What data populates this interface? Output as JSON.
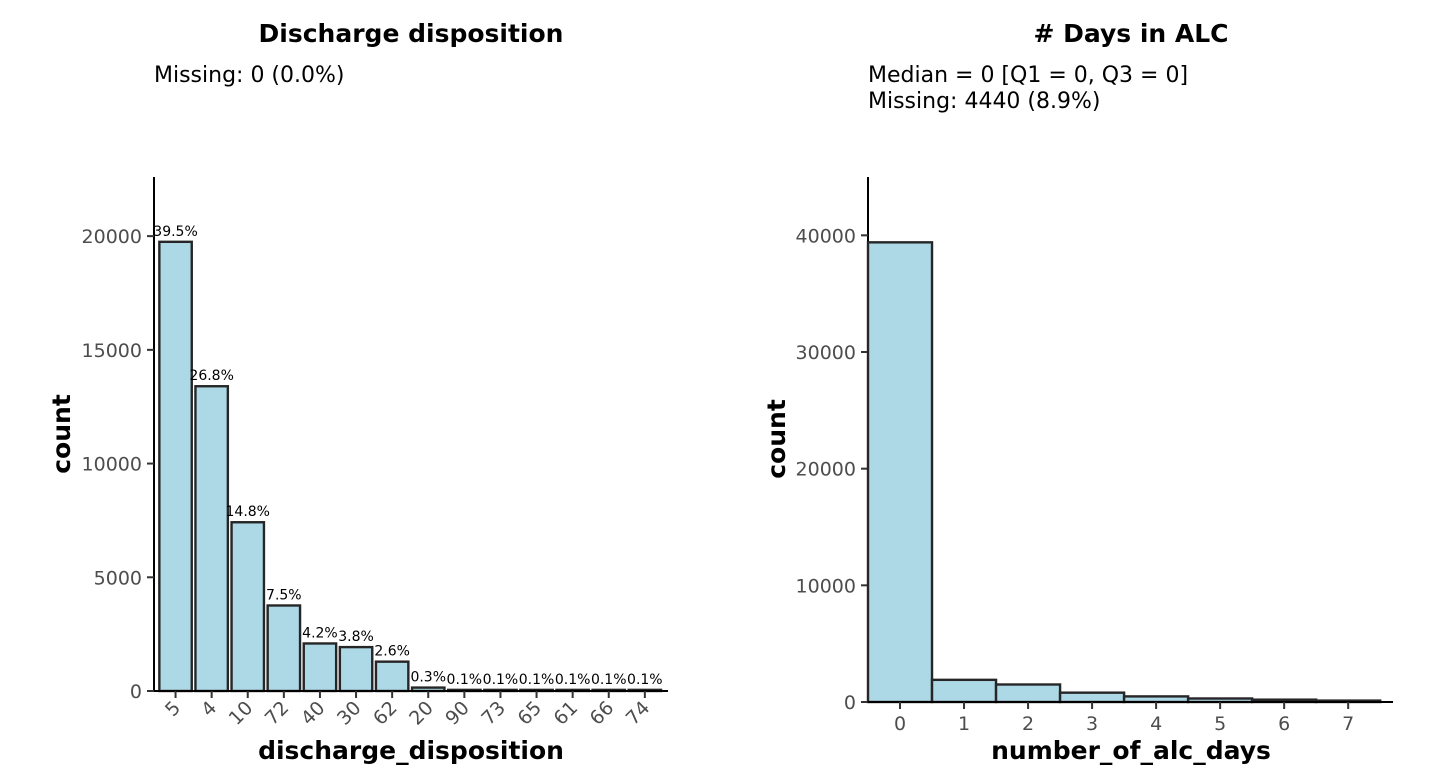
{
  "chart_data": [
    {
      "type": "bar",
      "title": "Discharge disposition",
      "subtitle_lines": [
        "Missing: 0 (0.0%)"
      ],
      "xlabel": "discharge_disposition",
      "ylabel": "count",
      "ylim": [
        0,
        22600
      ],
      "yticks": [
        0,
        5000,
        10000,
        15000,
        20000
      ],
      "categories": [
        "5",
        "4",
        "10",
        "72",
        "40",
        "30",
        "62",
        "20",
        "90",
        "73",
        "65",
        "61",
        "66",
        "74"
      ],
      "values": [
        19750,
        13400,
        7420,
        3760,
        2090,
        1930,
        1290,
        150,
        50,
        50,
        50,
        50,
        50,
        50
      ],
      "labels": [
        "39.5%",
        "26.8%",
        "14.8%",
        "7.5%",
        "4.2%",
        "3.8%",
        "2.6%",
        "0.3%",
        "0.1%",
        "0.1%",
        "0.1%",
        "0.1%",
        "0.1%",
        "0.1%"
      ],
      "bar_color": "#add8e6",
      "grid": false
    },
    {
      "type": "bar",
      "title": "# Days in ALC",
      "subtitle_lines": [
        "Median = 0 [Q1 = 0, Q3 = 0]",
        "Missing: 4440 (8.9%)"
      ],
      "xlabel": "number_of_alc_days",
      "ylabel": "count",
      "ylim": [
        0,
        45000
      ],
      "yticks": [
        0,
        10000,
        20000,
        30000,
        40000
      ],
      "x": [
        0,
        1,
        2,
        3,
        4,
        5,
        6,
        7
      ],
      "xticks": [
        0,
        1,
        2,
        3,
        4,
        5,
        6,
        7
      ],
      "xlim": [
        -0.5,
        7.7
      ],
      "values": [
        39400,
        1900,
        1500,
        800,
        480,
        300,
        200,
        120
      ],
      "bar_color": "#add8e6",
      "grid": false
    }
  ]
}
